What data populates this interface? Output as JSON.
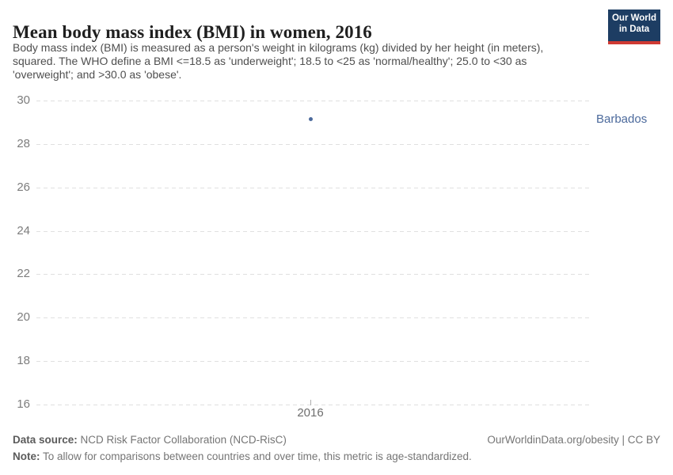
{
  "header": {
    "title": "Mean body mass index (BMI) in women, 2016",
    "subtitle_lines": [
      "Body mass index (BMI) is measured as a person's weight in kilograms (kg) divided by her height (in meters),",
      "squared. The WHO define a BMI <=18.5 as 'underweight'; 18.5 to <25 as 'normal/healthy'; 25.0 to <30 as",
      "'overweight'; and >30.0 as 'obese'."
    ],
    "logo": {
      "line1": "Our World",
      "line2": "in Data",
      "bg_color": "#1d3d63",
      "accent_color": "#cf3a33"
    }
  },
  "chart_data": {
    "type": "scatter",
    "title": "Mean body mass index (BMI) in women, 2016",
    "x": [
      2016
    ],
    "series": [
      {
        "name": "Barbados",
        "values": [
          29.2
        ],
        "color": "#4c6a9c"
      }
    ],
    "xlabel": "",
    "ylabel": "",
    "ylim": [
      16,
      30
    ],
    "yticks": [
      "30",
      "28",
      "26",
      "24",
      "22",
      "20",
      "18",
      "16"
    ],
    "xticks": [
      "2016"
    ],
    "grid": "horizontal dashed lines, on",
    "legend": "entity label at right of plot",
    "grid_color": "#e0e0e0"
  },
  "footer": {
    "source_label": "Data source:",
    "source_text": " NCD Risk Factor Collaboration (NCD-RisC)",
    "note_label": "Note:",
    "note_text": " To allow for comparisons between countries and over time, this metric is age-standardized.",
    "link": "OurWorldinData.org/obesity | CC BY"
  }
}
